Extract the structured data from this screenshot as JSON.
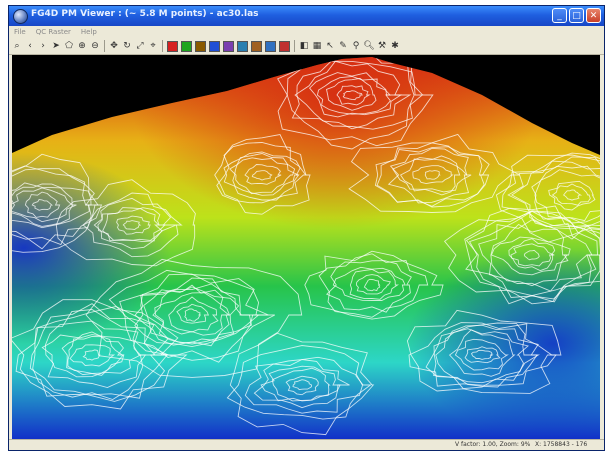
{
  "window": {
    "title": "FG4D PM Viewer : (~ 5.8 M points) - ac30.las"
  },
  "menu": [
    "File",
    "QC Raster",
    "Help"
  ],
  "toolbar": {
    "tools": [
      "zoom-icon",
      "back-icon",
      "forward-icon",
      "select-icon",
      "polygon-icon",
      "zoom-in-icon",
      "zoom-out-icon",
      "pan-icon",
      "rotate-icon",
      "tilt-icon",
      "measure-icon",
      "color-mode-1-icon",
      "color-mode-2-icon",
      "color-mode-3-icon",
      "color-mode-4-icon",
      "color-mode-5-icon",
      "color-mode-6-icon",
      "color-mode-7-icon",
      "color-mode-8-icon",
      "color-mode-9-icon",
      "palette-icon",
      "grid-icon",
      "pointer-icon",
      "pencil-icon",
      "profile-icon",
      "search-icon",
      "tools-icon",
      "settings-icon"
    ],
    "swatch_colors": [
      "#d62020",
      "#1fa51f",
      "#8a5a00",
      "#1f4fd6",
      "#7a3fb0",
      "#2a7fb0",
      "#a06020",
      "#3070c0",
      "#c03030"
    ]
  },
  "status": {
    "left": "",
    "middle": "V factor: 1.00, Zoom: 9%",
    "right": "X: 1758843 - 176"
  },
  "colors": {
    "high": "#d62d12",
    "mid": "#39c33a",
    "low": "#1230c8",
    "contour": "#ffffff",
    "sky": "#000000"
  }
}
